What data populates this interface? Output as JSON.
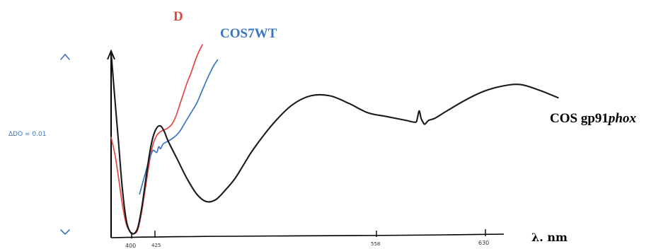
{
  "chart_data": {
    "type": "line",
    "title": "",
    "xlabel": "λ. nm",
    "ylabel": "",
    "xlim": [
      395,
      635
    ],
    "ylim": [
      0,
      1
    ],
    "grid": false,
    "x_tick_labels": [
      "400",
      "425",
      "558",
      "630"
    ],
    "scale_bar_label": "ΔDO = 0.01",
    "colors": {
      "D": "#e0483f",
      "COS7WT": "#3c74c4",
      "COS gp91phox": "#1a1a1a"
    },
    "series": [
      {
        "name": "D",
        "color_key": "D",
        "x": [
          395,
          397,
          399,
          401,
          403,
          405,
          407,
          409,
          411,
          413,
          415,
          417,
          419,
          421,
          423,
          425,
          427,
          429,
          431,
          433,
          435,
          437,
          439,
          441,
          443
        ],
        "y": [
          0.52,
          0.43,
          0.3,
          0.16,
          0.06,
          0.02,
          0.01,
          0.03,
          0.12,
          0.25,
          0.38,
          0.48,
          0.53,
          0.55,
          0.56,
          0.57,
          0.59,
          0.63,
          0.69,
          0.75,
          0.81,
          0.86,
          0.92,
          0.97,
          1.01
        ]
      },
      {
        "name": "COS7WT",
        "color_key": "COS7WT",
        "x": [
          410,
          413,
          415,
          417,
          419,
          420,
          421,
          422,
          423,
          425,
          428,
          431,
          434,
          437,
          440,
          443,
          446,
          449,
          451
        ],
        "y": [
          0.22,
          0.33,
          0.4,
          0.45,
          0.44,
          0.47,
          0.46,
          0.48,
          0.49,
          0.5,
          0.52,
          0.55,
          0.6,
          0.65,
          0.7,
          0.77,
          0.84,
          0.9,
          0.93
        ]
      },
      {
        "name": "COS gp91phox",
        "color_key": "COS gp91phox",
        "x": [
          395,
          397,
          399,
          401,
          403,
          405,
          407,
          409,
          411,
          413,
          415,
          417,
          419,
          421,
          423,
          425,
          430,
          435,
          440,
          445,
          450,
          455,
          460,
          465,
          470,
          480,
          490,
          500,
          510,
          520,
          530,
          540,
          550,
          555,
          556,
          557,
          558,
          559,
          560,
          562,
          565,
          570,
          580,
          590,
          600,
          610,
          620,
          630
        ],
        "y": [
          0.97,
          0.72,
          0.48,
          0.24,
          0.08,
          0.02,
          0.01,
          0.04,
          0.14,
          0.28,
          0.42,
          0.52,
          0.57,
          0.58,
          0.55,
          0.5,
          0.4,
          0.3,
          0.22,
          0.18,
          0.19,
          0.24,
          0.3,
          0.38,
          0.46,
          0.59,
          0.69,
          0.74,
          0.74,
          0.7,
          0.65,
          0.63,
          0.61,
          0.6,
          0.62,
          0.66,
          0.62,
          0.6,
          0.59,
          0.61,
          0.62,
          0.65,
          0.71,
          0.76,
          0.79,
          0.8,
          0.77,
          0.73
        ]
      }
    ]
  },
  "labels": {
    "series_d": "D",
    "series_cos7wt": "COS7WT",
    "series_gp91_prefix": "COS gp91",
    "series_gp91_italic": "phox",
    "scale_bar": "ΔDO = 0.01",
    "x_axis_unit": "λ. nm"
  }
}
